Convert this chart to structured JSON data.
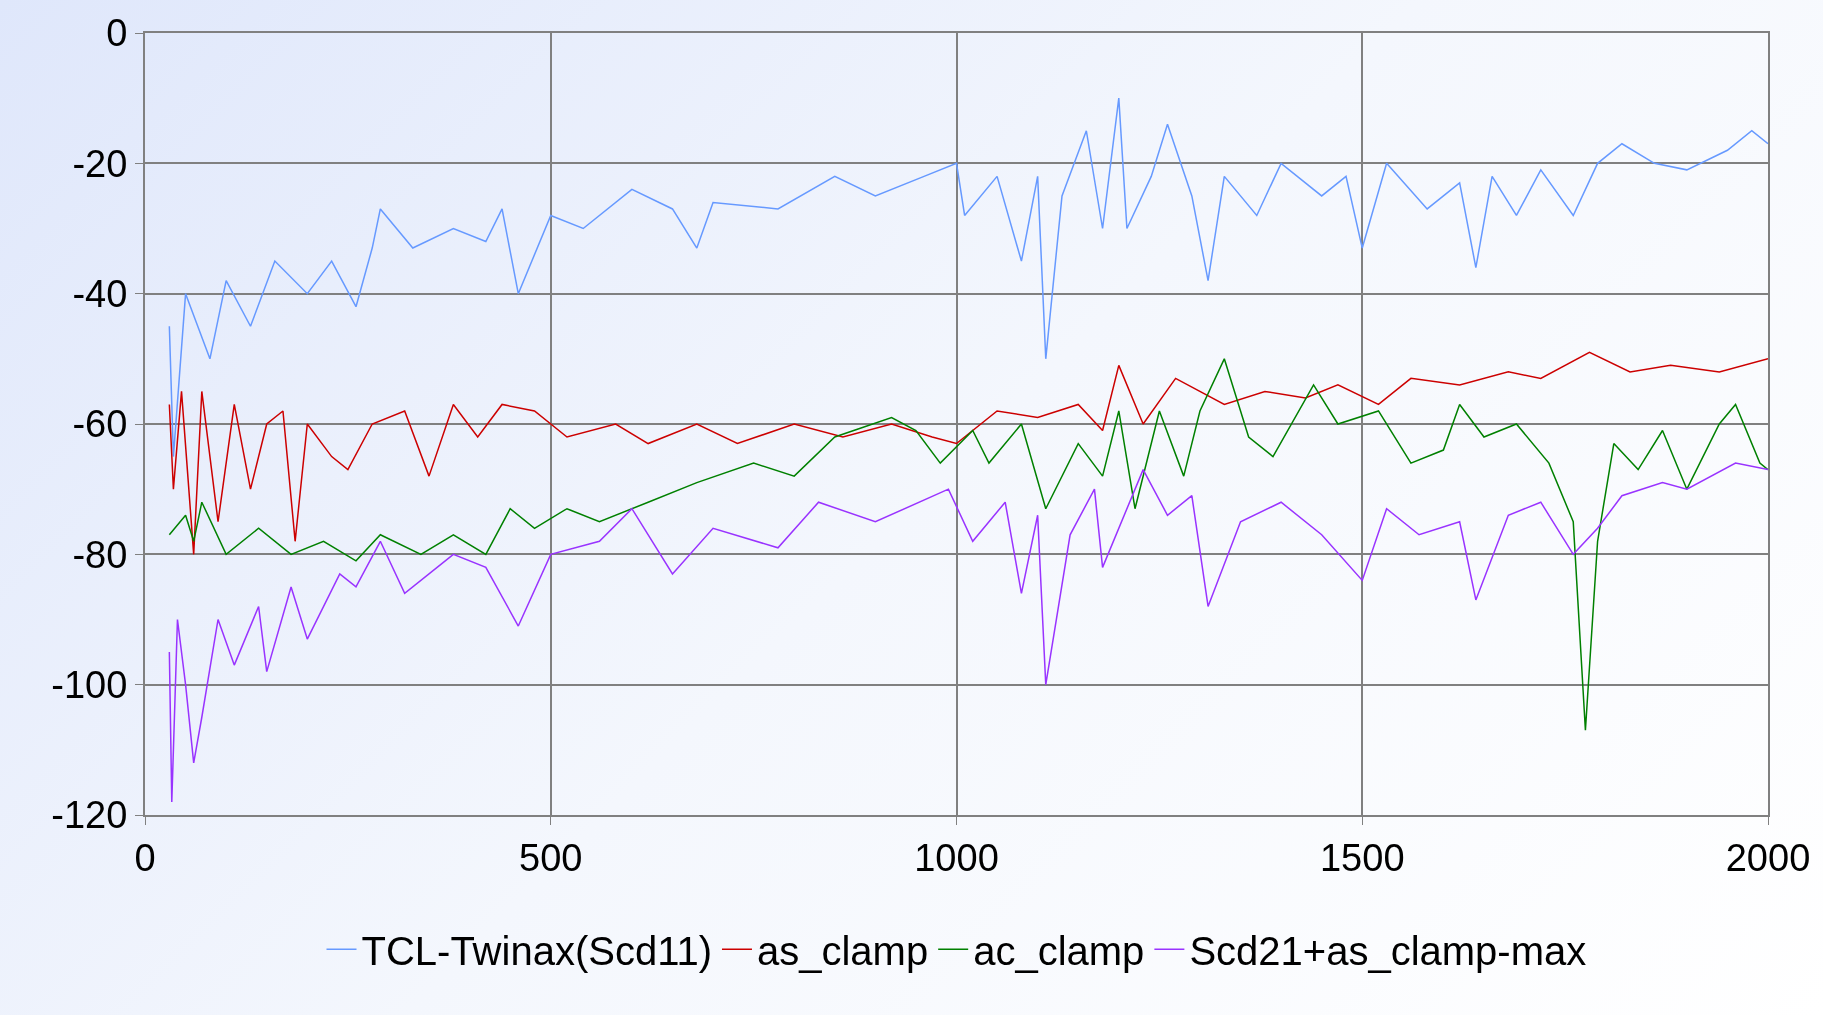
{
  "chart_data": {
    "type": "line",
    "xlim": [
      0,
      2000
    ],
    "ylim": [
      -120,
      0
    ],
    "xticks": [
      0,
      500,
      1000,
      1500,
      2000
    ],
    "yticks": [
      -120,
      -100,
      -80,
      -60,
      -40,
      -20,
      0
    ],
    "grid": true,
    "legend": "bottom",
    "marker": "none",
    "line_style": "solid",
    "series": [
      {
        "name": "TCL-Twinax(Scd11)",
        "color": "#6699ff",
        "x": [
          30,
          35,
          50,
          80,
          100,
          130,
          160,
          200,
          230,
          260,
          280,
          290,
          330,
          380,
          420,
          440,
          460,
          500,
          540,
          600,
          650,
          680,
          700,
          780,
          850,
          900,
          960,
          1000,
          1010,
          1050,
          1080,
          1100,
          1110,
          1130,
          1160,
          1180,
          1200,
          1210,
          1240,
          1260,
          1290,
          1310,
          1330,
          1370,
          1400,
          1450,
          1480,
          1500,
          1530,
          1580,
          1620,
          1640,
          1660,
          1690,
          1720,
          1760,
          1790,
          1820,
          1860,
          1900,
          1950,
          1980,
          2000
        ],
        "values": [
          -45,
          -65,
          -40,
          -50,
          -38,
          -45,
          -35,
          -40,
          -35,
          -42,
          -33,
          -27,
          -33,
          -30,
          -32,
          -27,
          -40,
          -28,
          -30,
          -24,
          -27,
          -33,
          -26,
          -27,
          -22,
          -25,
          -22,
          -20,
          -28,
          -22,
          -35,
          -22,
          -50,
          -25,
          -15,
          -30,
          -10,
          -30,
          -22,
          -14,
          -25,
          -38,
          -22,
          -28,
          -20,
          -25,
          -22,
          -33,
          -20,
          -27,
          -23,
          -36,
          -22,
          -28,
          -21,
          -28,
          -20,
          -17,
          -20,
          -21,
          -18,
          -15,
          -17
        ]
      },
      {
        "name": "as_clamp",
        "color": "#cc0000",
        "x": [
          30,
          35,
          45,
          60,
          70,
          90,
          110,
          130,
          150,
          170,
          185,
          200,
          230,
          250,
          280,
          320,
          350,
          380,
          410,
          440,
          480,
          520,
          580,
          620,
          680,
          730,
          800,
          860,
          920,
          970,
          1000,
          1050,
          1100,
          1150,
          1180,
          1200,
          1230,
          1270,
          1330,
          1380,
          1430,
          1470,
          1520,
          1560,
          1620,
          1680,
          1720,
          1780,
          1830,
          1880,
          1940,
          2000
        ],
        "values": [
          -57,
          -70,
          -55,
          -80,
          -55,
          -75,
          -57,
          -70,
          -60,
          -58,
          -78,
          -60,
          -65,
          -67,
          -60,
          -58,
          -68,
          -57,
          -62,
          -57,
          -58,
          -62,
          -60,
          -63,
          -60,
          -63,
          -60,
          -62,
          -60,
          -62,
          -63,
          -58,
          -59,
          -57,
          -61,
          -51,
          -60,
          -53,
          -57,
          -55,
          -56,
          -54,
          -57,
          -53,
          -54,
          -52,
          -53,
          -49,
          -52,
          -51,
          -52,
          -50
        ]
      },
      {
        "name": "ac_clamp",
        "color": "#008000",
        "x": [
          30,
          50,
          60,
          70,
          100,
          140,
          180,
          220,
          260,
          290,
          340,
          380,
          420,
          450,
          480,
          520,
          560,
          620,
          680,
          750,
          800,
          850,
          920,
          950,
          980,
          1020,
          1040,
          1080,
          1110,
          1150,
          1180,
          1200,
          1220,
          1250,
          1280,
          1300,
          1330,
          1360,
          1390,
          1440,
          1470,
          1520,
          1560,
          1600,
          1620,
          1650,
          1690,
          1730,
          1760,
          1775,
          1790,
          1810,
          1840,
          1870,
          1900,
          1940,
          1960,
          1990,
          2000
        ],
        "values": [
          -77,
          -74,
          -78,
          -72,
          -80,
          -76,
          -80,
          -78,
          -81,
          -77,
          -80,
          -77,
          -80,
          -73,
          -76,
          -73,
          -75,
          -72,
          -69,
          -66,
          -68,
          -62,
          -59,
          -61,
          -66,
          -61,
          -66,
          -60,
          -73,
          -63,
          -68,
          -58,
          -73,
          -58,
          -68,
          -58,
          -50,
          -62,
          -65,
          -54,
          -60,
          -58,
          -66,
          -64,
          -57,
          -62,
          -60,
          -66,
          -75,
          -107,
          -78,
          -63,
          -67,
          -61,
          -70,
          -60,
          -57,
          -66,
          -67
        ]
      },
      {
        "name": "Scd21+as_clamp-max",
        "color": "#9933ff",
        "x": [
          30,
          33,
          40,
          50,
          60,
          70,
          90,
          110,
          140,
          150,
          180,
          200,
          240,
          260,
          290,
          320,
          380,
          420,
          460,
          500,
          560,
          600,
          650,
          700,
          780,
          830,
          900,
          990,
          1020,
          1060,
          1080,
          1100,
          1110,
          1140,
          1170,
          1180,
          1230,
          1260,
          1290,
          1310,
          1350,
          1400,
          1450,
          1500,
          1530,
          1570,
          1620,
          1640,
          1680,
          1720,
          1760,
          1790,
          1820,
          1870,
          1900,
          1960,
          2000
        ],
        "values": [
          -95,
          -118,
          -90,
          -100,
          -112,
          -105,
          -90,
          -97,
          -88,
          -98,
          -85,
          -93,
          -83,
          -85,
          -78,
          -86,
          -80,
          -82,
          -91,
          -80,
          -78,
          -73,
          -83,
          -76,
          -79,
          -72,
          -75,
          -70,
          -78,
          -72,
          -86,
          -74,
          -100,
          -77,
          -70,
          -82,
          -67,
          -74,
          -71,
          -88,
          -75,
          -72,
          -77,
          -84,
          -73,
          -77,
          -75,
          -87,
          -74,
          -72,
          -80,
          -76,
          -71,
          -69,
          -70,
          -66,
          -67
        ]
      }
    ]
  }
}
